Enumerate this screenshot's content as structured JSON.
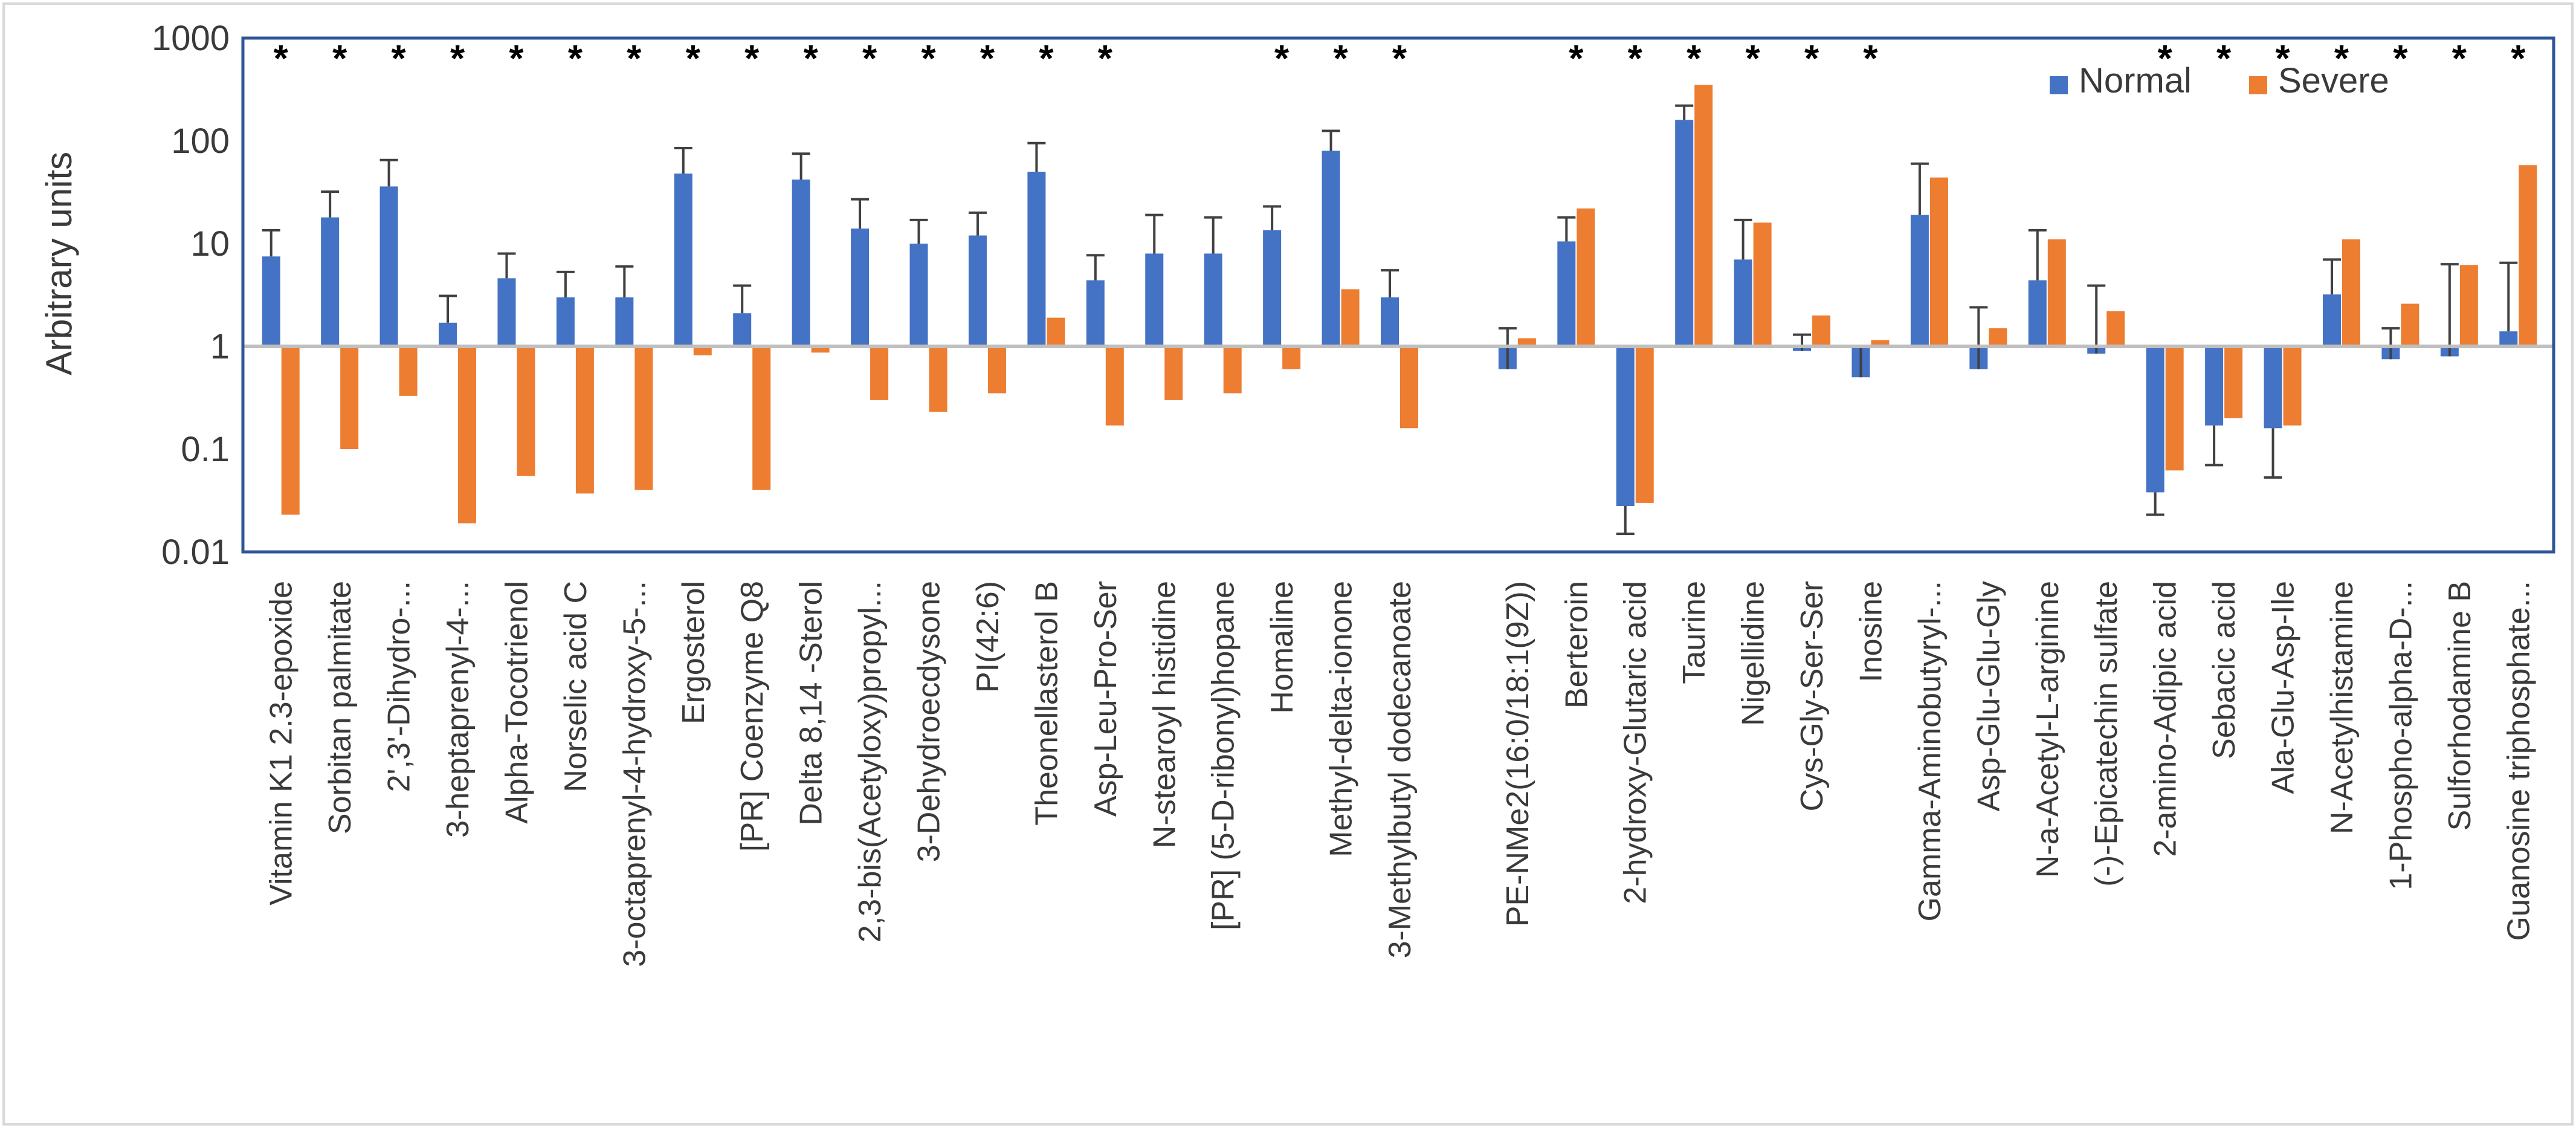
{
  "chart_data": {
    "type": "bar",
    "scale": "log",
    "baseline": 1,
    "ylabel": "Arbitrary units",
    "ylim": [
      0.01,
      1000
    ],
    "yticks": [
      {
        "value": 0.01,
        "label": "0.01"
      },
      {
        "value": 0.1,
        "label": "0.1"
      },
      {
        "value": 1,
        "label": "1"
      },
      {
        "value": 10,
        "label": "10"
      },
      {
        "value": 100,
        "label": "100"
      },
      {
        "value": 1000,
        "label": "1000"
      }
    ],
    "legend": {
      "position": "top-right",
      "entries": [
        "Normal",
        "Severe"
      ]
    },
    "colors": {
      "Normal": "#4472C4",
      "Severe": "#ED7D31",
      "frame": "#2E5597",
      "error": "#404040",
      "star": "#000000"
    },
    "significance_marker": "*",
    "categories": [
      {
        "label": "Vitamin K1 2.3-epoxide",
        "normal": 7.5,
        "normal_err": 13.5,
        "severe": 0.023,
        "star": true
      },
      {
        "label": "Sorbitan palmitate",
        "normal": 18,
        "normal_err": 32,
        "severe": 0.1,
        "star": true
      },
      {
        "label": "2',3'-Dihydro-...",
        "normal": 36,
        "normal_err": 65,
        "severe": 0.33,
        "star": true
      },
      {
        "label": "3-heptaprenyl-4-...",
        "normal": 1.7,
        "normal_err": 3.1,
        "severe": 0.019,
        "star": true
      },
      {
        "label": "Alpha-Tocotrienol",
        "normal": 4.6,
        "normal_err": 8,
        "severe": 0.055,
        "star": true
      },
      {
        "label": "Norselic acid C",
        "normal": 3,
        "normal_err": 5.3,
        "severe": 0.037,
        "star": true
      },
      {
        "label": "3-octaprenyl-4-hydroxy-5-...",
        "normal": 3,
        "normal_err": 6,
        "severe": 0.04,
        "star": true
      },
      {
        "label": "Ergosterol",
        "normal": 48,
        "normal_err": 85,
        "severe": 0.82,
        "star": true
      },
      {
        "label": "[PR] Coenzyme Q8",
        "normal": 2.1,
        "normal_err": 3.9,
        "severe": 0.04,
        "star": true
      },
      {
        "label": "Delta 8,14 -Sterol",
        "normal": 42,
        "normal_err": 75,
        "severe": 0.87,
        "star": true
      },
      {
        "label": "2,3-bis(Acetyloxy)propyl...",
        "normal": 14,
        "normal_err": 27,
        "severe": 0.3,
        "star": true
      },
      {
        "label": "3-Dehydroecdysone",
        "normal": 10,
        "normal_err": 17,
        "severe": 0.23,
        "star": true
      },
      {
        "label": "PI(42:6)",
        "normal": 12,
        "normal_err": 20,
        "severe": 0.35,
        "star": true
      },
      {
        "label": "Theonellasterol B",
        "normal": 50,
        "normal_err": 95,
        "severe": 1.9,
        "star": true
      },
      {
        "label": "Asp-Leu-Pro-Ser",
        "normal": 4.4,
        "normal_err": 7.7,
        "severe": 0.17,
        "star": true
      },
      {
        "label": "N-stearoyl histidine",
        "normal": 8,
        "normal_err": 19,
        "severe": 0.3,
        "star": false
      },
      {
        "label": "[PR] (5-D-ribonyl)hopane",
        "normal": 8,
        "normal_err": 18,
        "severe": 0.35,
        "star": false
      },
      {
        "label": "Homaline",
        "normal": 13.5,
        "normal_err": 23,
        "severe": 0.6,
        "star": true
      },
      {
        "label": "Methyl-delta-ionone",
        "normal": 80,
        "normal_err": 125,
        "severe": 3.6,
        "star": true
      },
      {
        "label": "3-Methylbutyl dodecanoate",
        "normal": 3,
        "normal_err": 5.5,
        "severe": 0.16,
        "star": true
      },
      {
        "label": "",
        "gap": true
      },
      {
        "label": "PE-NMe2(16:0/18:1(9Z))",
        "normal": 0.6,
        "normal_err": 1.5,
        "severe": 1.2,
        "star": false
      },
      {
        "label": "Berteroin",
        "normal": 10.5,
        "normal_err": 18,
        "severe": 22,
        "star": true
      },
      {
        "label": "2-hydroxy-Glutaric acid",
        "normal": 0.028,
        "normal_err": 0.015,
        "severe": 0.03,
        "star": true
      },
      {
        "label": "Taurine",
        "normal": 160,
        "normal_err": 220,
        "severe": 350,
        "star": true
      },
      {
        "label": "Nigellidine",
        "normal": 7,
        "normal_err": 17,
        "severe": 16,
        "star": true
      },
      {
        "label": "Cys-Gly-Ser-Ser",
        "normal": 0.9,
        "normal_err": 1.3,
        "severe": 2,
        "star": true
      },
      {
        "label": "Inosine",
        "normal": 0.5,
        "normal_err": 1,
        "severe": 1.15,
        "star": true
      },
      {
        "label": "Gamma-Aminobutyryl-...",
        "normal": 19,
        "normal_err": 60,
        "severe": 44,
        "star": false
      },
      {
        "label": "Asp-Glu-Glu-Gly",
        "normal": 0.6,
        "normal_err": 2.4,
        "severe": 1.5,
        "star": false
      },
      {
        "label": "N-a-Acetyl-L-arginine",
        "normal": 4.4,
        "normal_err": 13.5,
        "severe": 11,
        "star": false
      },
      {
        "label": "(-)-Epicatechin sulfate",
        "normal": 0.85,
        "normal_err": 3.9,
        "severe": 2.2,
        "star": false
      },
      {
        "label": "2-amino-Adipic acid",
        "normal": 0.038,
        "normal_err": 0.023,
        "severe": 0.062,
        "star": true
      },
      {
        "label": "Sebacic acid",
        "normal": 0.17,
        "normal_err": 0.07,
        "severe": 0.2,
        "star": true
      },
      {
        "label": "Ala-Glu-Asp-Ile",
        "normal": 0.16,
        "normal_err": 0.053,
        "severe": 0.17,
        "star": true
      },
      {
        "label": "N-Acetylhistamine",
        "normal": 3.2,
        "normal_err": 7,
        "severe": 11,
        "star": true
      },
      {
        "label": "1-Phospho-alpha-D-...",
        "normal": 0.75,
        "normal_err": 1.5,
        "severe": 2.6,
        "star": true
      },
      {
        "label": "Sulforhodamine B",
        "normal": 0.8,
        "normal_err": 6.3,
        "severe": 6.2,
        "star": true
      },
      {
        "label": "Guanosine triphosphate...",
        "normal": 1.4,
        "normal_err": 6.5,
        "severe": 58,
        "star": true
      }
    ]
  }
}
